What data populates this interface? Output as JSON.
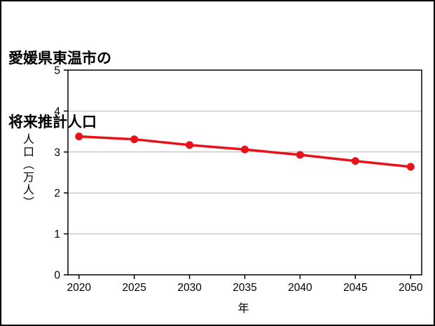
{
  "title": {
    "line1": "愛媛県東温市の",
    "line2": "将来推計人口"
  },
  "colors": {
    "background": "#ffffff",
    "frame": "#000000",
    "grid": "#b3b3b3",
    "line": "#e8121a",
    "text": "#000000"
  },
  "chart_data": {
    "type": "line",
    "title": "愛媛県東温市の将来推計人口",
    "x": [
      2020,
      2025,
      2030,
      2035,
      2040,
      2045,
      2050
    ],
    "series": [
      {
        "name": "将来推計人口",
        "values": [
          3.38,
          3.31,
          3.17,
          3.06,
          2.93,
          2.78,
          2.64
        ],
        "color": "#e8121a",
        "marker": "circle"
      }
    ],
    "xlabel": "年",
    "ylabel": "人口（万人）",
    "xlim": [
      2019,
      2051
    ],
    "ylim": [
      0,
      5
    ],
    "xticks": [
      2020,
      2025,
      2030,
      2035,
      2040,
      2045,
      2050
    ],
    "yticks": [
      0,
      1,
      2,
      3,
      4,
      5
    ],
    "grid": "horizontal-only",
    "legend": "none"
  }
}
